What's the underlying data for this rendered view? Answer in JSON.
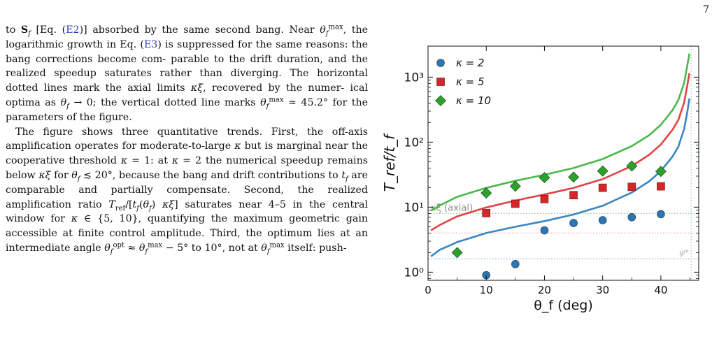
{
  "page_number": "7",
  "paragraphs": [
    {
      "kind": "continuation",
      "lines": [
        "to S_f [Eq. (E2)] absorbed by the same second bang. Near",
        "θ_f^max, the logarithmic growth in Eq. (E3) is suppressed",
        "for the same reasons: the bang corrections become com-",
        "parable to the drift duration, and the realized speedup",
        "saturates rather than diverging. The horizontal dotted",
        "lines mark the axial limits κξ, recovered by the numer-",
        "ical optima as θ_f → 0; the vertical dotted line marks",
        "θ_f^max ≈ 45.2° for the parameters of the figure."
      ]
    },
    {
      "kind": "indented",
      "lines": [
        "The figure shows three quantitative trends. First, the",
        "off-axis amplification operates for moderate-to-large κ",
        "but is marginal near the cooperative threshold κ = 1:",
        "at κ = 2 the numerical speedup remains below κξ for",
        "θ_f ≲ 20°, because the bang and drift contributions to t_f",
        "are comparable and partially compensate. Second, the",
        "realized amplification ratio T_ref/[t_f(θ_f) κξ] saturates near",
        "4–5 in the central window for κ ∈ {5, 10}, quantifying",
        "the maximum geometric gain accessible at finite control",
        "amplitude. Third, the optimum lies at an intermediate",
        "angle θ_f^opt ≈ θ_f^max − 5° to 10°, not at θ_f^max itself: push-"
      ]
    }
  ],
  "chart_data": {
    "type": "scatter",
    "title": "",
    "xlabel": "θ_f (deg)",
    "ylabel": "T_ref/t_f",
    "xlim": [
      0,
      46.5
    ],
    "ylim": [
      0.75,
      3000
    ],
    "yscale": "log",
    "xticks": [
      0,
      10,
      20,
      30,
      40
    ],
    "xtick_labels": [
      "0",
      "10",
      "20",
      "30",
      "40"
    ],
    "yticks": [
      1,
      10,
      100,
      1000
    ],
    "ytick_labels": [
      "10⁰",
      "10¹",
      "10²",
      "10³"
    ],
    "legend_position": "top-left",
    "series": [
      {
        "name": "κ = 2",
        "marker": "circle",
        "color": "#2e76b0",
        "x": [
          10,
          15,
          20,
          25,
          30,
          35,
          40
        ],
        "y": [
          0.9,
          1.33,
          4.4,
          5.7,
          6.3,
          7.0,
          7.8
        ]
      },
      {
        "name": "κ = 5",
        "marker": "square",
        "color": "#d62728",
        "x": [
          10,
          15,
          20,
          25,
          30,
          35,
          40
        ],
        "y": [
          8.1,
          11.3,
          13.3,
          15.3,
          19.9,
          20.5,
          20.9
        ]
      },
      {
        "name": "κ = 10",
        "marker": "diamond",
        "color": "#2ca02c",
        "x": [
          5,
          10,
          15,
          20,
          25,
          30,
          35,
          40
        ],
        "y": [
          2.0,
          16.5,
          21.0,
          28.5,
          29.0,
          36.0,
          43.0,
          35.5
        ]
      }
    ],
    "curves": [
      {
        "color": "#3a86c0",
        "x": [
          0.5,
          2,
          5,
          10,
          15,
          20,
          25,
          30,
          35,
          38,
          40,
          42,
          43,
          44,
          44.5,
          44.9
        ],
        "y": [
          1.75,
          2.2,
          2.9,
          4.0,
          5.0,
          6.1,
          7.7,
          10.5,
          16.8,
          25,
          36,
          60,
          85,
          160,
          280,
          470
        ]
      },
      {
        "color": "#e04444",
        "x": [
          0.5,
          2,
          5,
          10,
          15,
          20,
          25,
          30,
          35,
          38,
          40,
          42,
          43,
          44,
          44.5,
          44.9
        ],
        "y": [
          4.4,
          5.3,
          7.2,
          9.9,
          12.6,
          15.7,
          19.8,
          27,
          43,
          64,
          92,
          155,
          220,
          410,
          720,
          1150
        ]
      },
      {
        "color": "#4bb84b",
        "x": [
          0.5,
          2,
          5,
          10,
          15,
          20,
          25,
          30,
          35,
          38,
          40,
          42,
          43,
          44,
          44.5,
          44.9
        ],
        "y": [
          8.8,
          10.6,
          14.4,
          19.8,
          25.4,
          31.5,
          40,
          55,
          87,
          128,
          185,
          310,
          445,
          820,
          1450,
          2300
        ]
      }
    ],
    "axial_limits": [
      {
        "y": 1.6,
        "color": "#7fb0dc",
        "label": "ψ*"
      },
      {
        "y": 4.0,
        "color": "#f0a0a0",
        "label": ""
      },
      {
        "y": 8.0,
        "color": "#90d090",
        "label": "κξ (axial)"
      }
    ],
    "theta_max": 45.2
  }
}
